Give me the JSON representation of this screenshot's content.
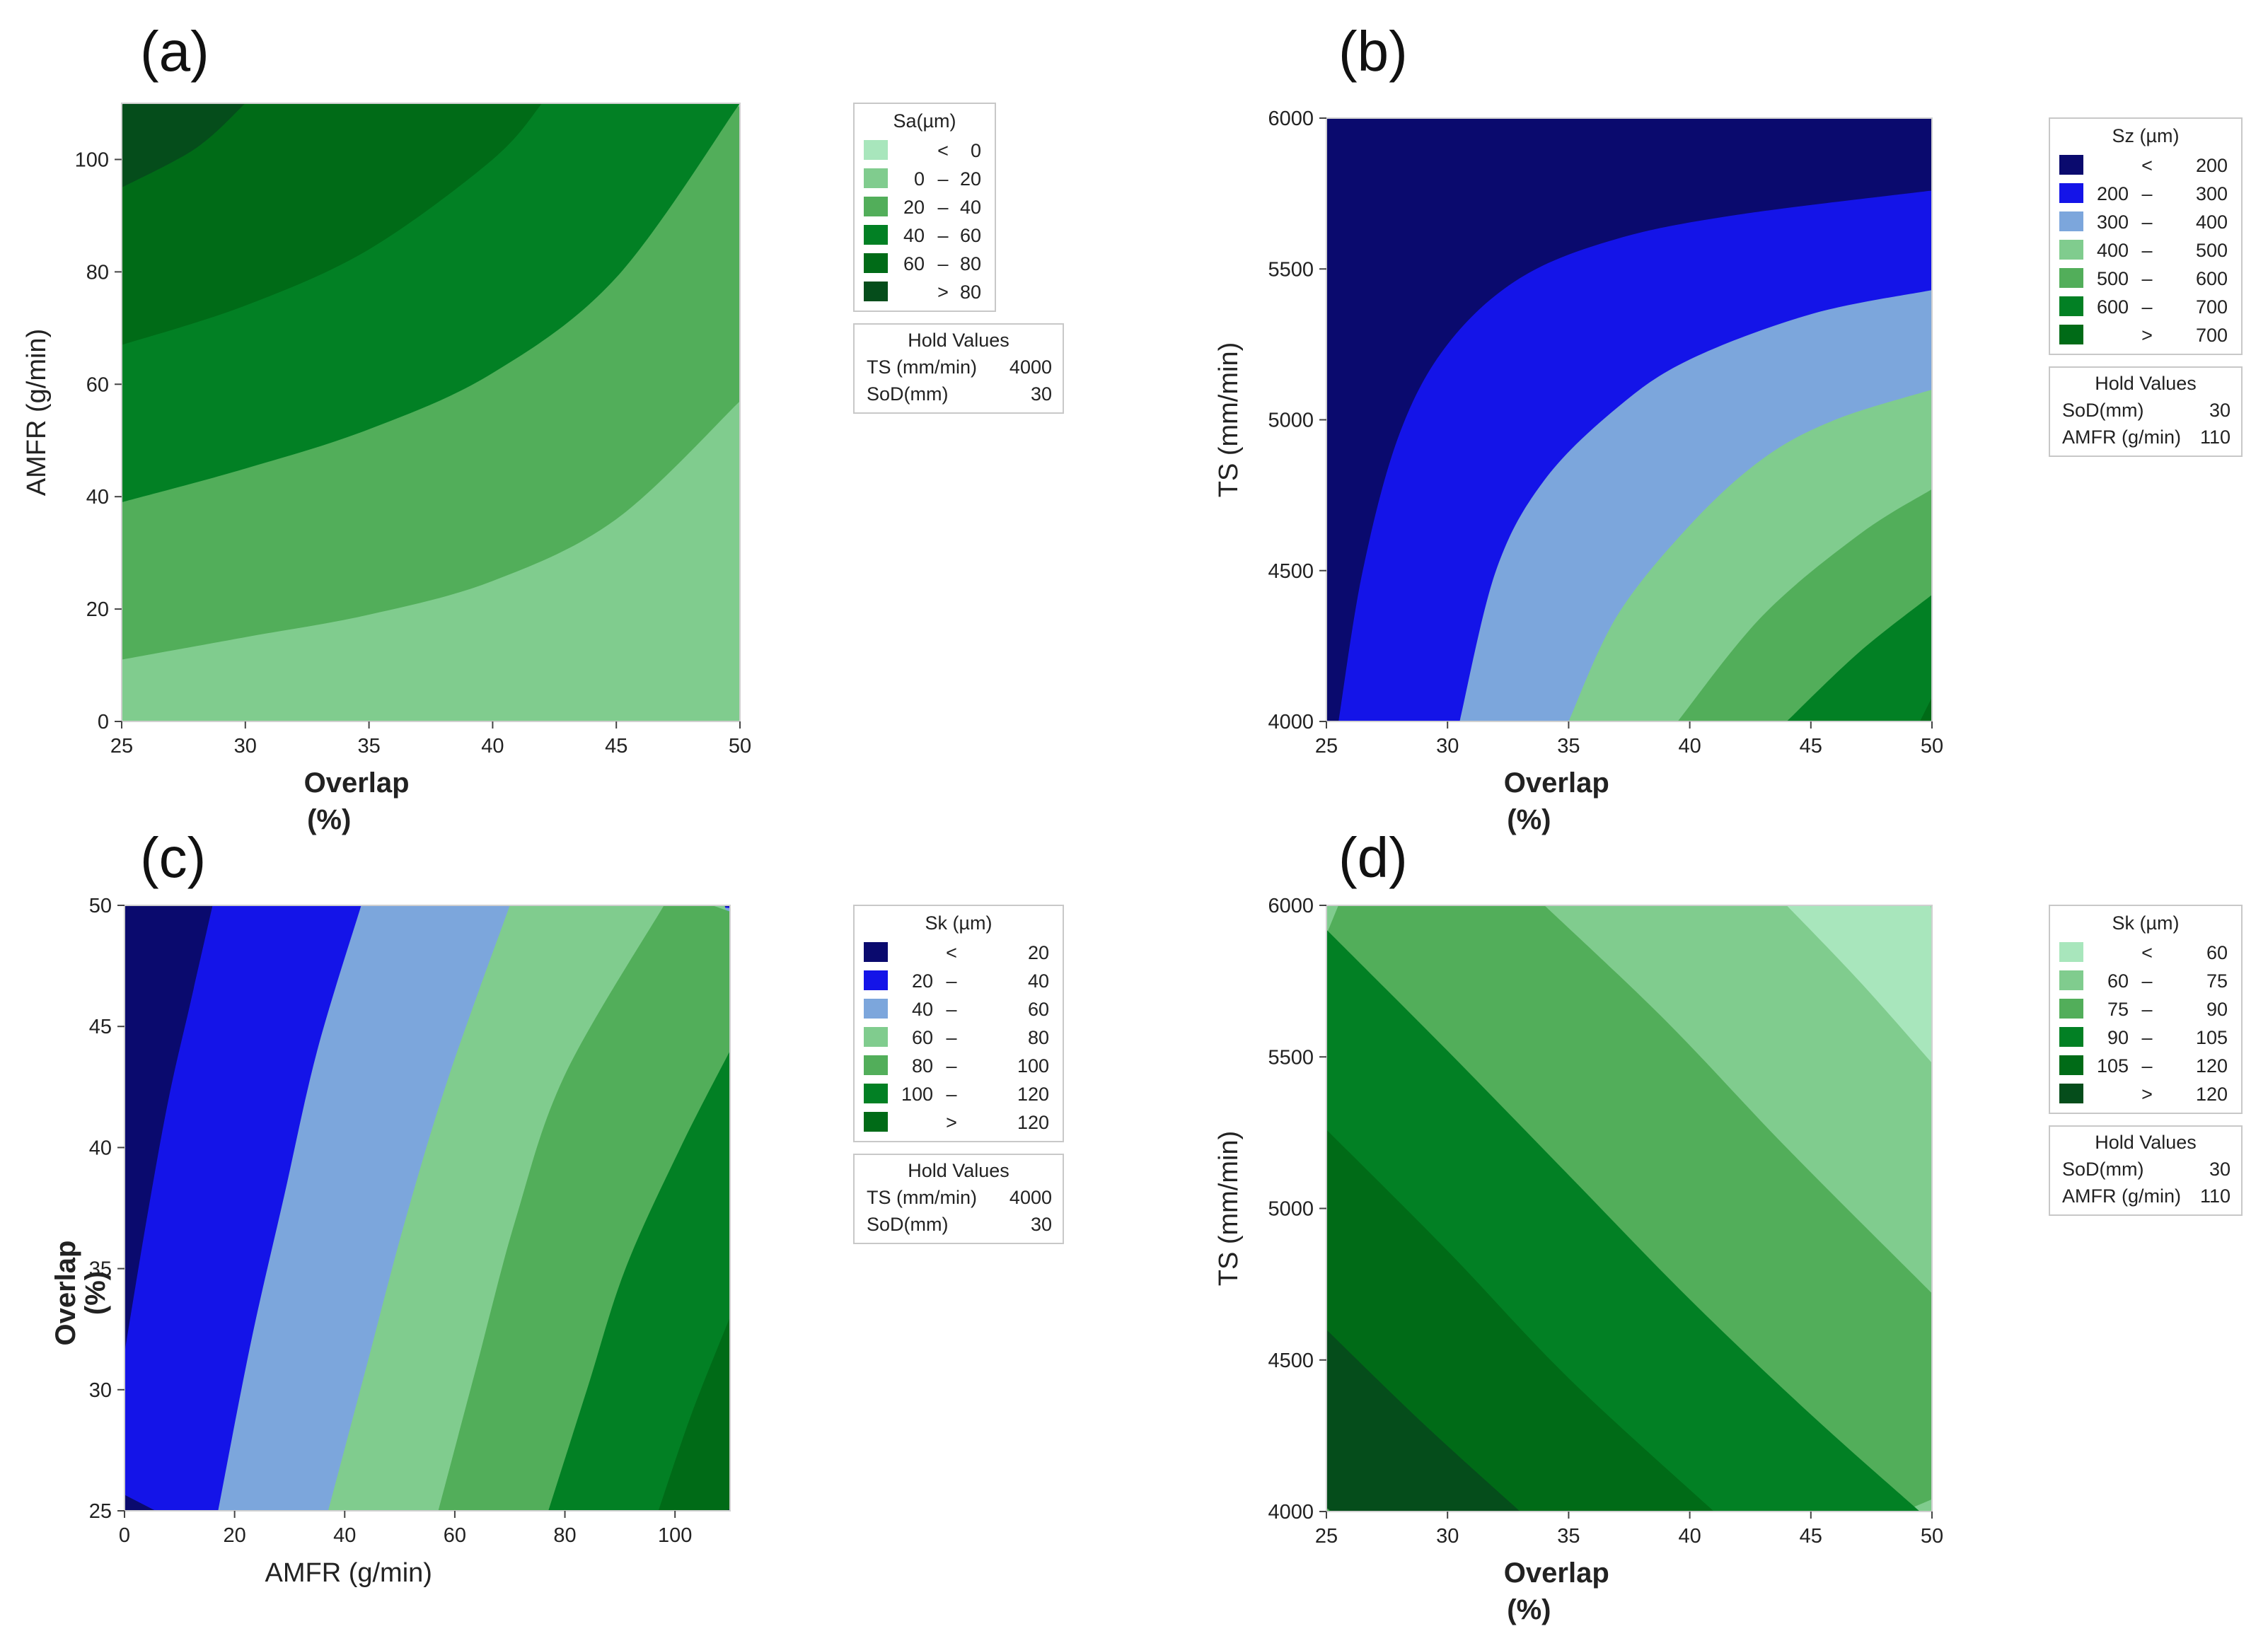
{
  "chart_data": [
    {
      "type": "contour",
      "panel_label": "(a)",
      "xlabel": "Overlap",
      "xlabel_unit": "(%)",
      "ylabel": "AMFR (g/min)",
      "x_ticks": [
        "25",
        "30",
        "35",
        "40",
        "45",
        "50"
      ],
      "y_ticks": [
        "0",
        "20",
        "40",
        "60",
        "80",
        "100"
      ],
      "xlim": [
        25,
        50
      ],
      "ylim": [
        0,
        110
      ],
      "legend": {
        "title": "Sa(µm)",
        "entries": [
          {
            "lo": "",
            "op": "<",
            "hi": "0",
            "color": "#a8e6bc"
          },
          {
            "lo": "0",
            "op": "–",
            "hi": "20",
            "color": "#80cc8e"
          },
          {
            "lo": "20",
            "op": "–",
            "hi": "40",
            "color": "#52ae5a"
          },
          {
            "lo": "40",
            "op": "–",
            "hi": "60",
            "color": "#028024"
          },
          {
            "lo": "60",
            "op": "–",
            "hi": "80",
            "color": "#006b17"
          },
          {
            "lo": "",
            "op": ">",
            "hi": "80",
            "color": "#054d1b"
          }
        ]
      },
      "hold_values": {
        "title": "Hold Values",
        "rows": [
          {
            "name": "TS (mm/min)",
            "value": "4000"
          },
          {
            "name": "SoD(mm)",
            "value": "30"
          }
        ]
      },
      "contour_boundaries": [
        {
          "level": 20,
          "points": [
            [
              25,
              11
            ],
            [
              30,
              15
            ],
            [
              35,
              19
            ],
            [
              40,
              25
            ],
            [
              45,
              36
            ],
            [
              50,
              57
            ]
          ]
        },
        {
          "level": 40,
          "points": [
            [
              25,
              39
            ],
            [
              30,
              45
            ],
            [
              35,
              52
            ],
            [
              40,
              62
            ],
            [
              45,
              79
            ],
            [
              50,
              110
            ]
          ]
        },
        {
          "level": 60,
          "points": [
            [
              25,
              67
            ],
            [
              30,
              74
            ],
            [
              35,
              84
            ],
            [
              40,
              100
            ],
            [
              42,
              110
            ]
          ]
        },
        {
          "level": 80,
          "points": [
            [
              25,
              95
            ],
            [
              28,
              102
            ],
            [
              30,
              110
            ]
          ]
        }
      ]
    },
    {
      "type": "contour",
      "panel_label": "(b)",
      "xlabel": "Overlap",
      "xlabel_unit": "(%)",
      "ylabel": "TS (mm/min)",
      "x_ticks": [
        "25",
        "30",
        "35",
        "40",
        "45",
        "50"
      ],
      "y_ticks": [
        "4000",
        "4500",
        "5000",
        "5500",
        "6000"
      ],
      "xlim": [
        25,
        50
      ],
      "ylim": [
        4000,
        6000
      ],
      "legend": {
        "title": "Sz (µm)",
        "entries": [
          {
            "lo": "",
            "op": "<",
            "hi": "200",
            "color": "#0a0a6e"
          },
          {
            "lo": "200",
            "op": "–",
            "hi": "300",
            "color": "#1414e8"
          },
          {
            "lo": "300",
            "op": "–",
            "hi": "400",
            "color": "#7ca6dc"
          },
          {
            "lo": "400",
            "op": "–",
            "hi": "500",
            "color": "#80cc8e"
          },
          {
            "lo": "500",
            "op": "–",
            "hi": "600",
            "color": "#52ae5a"
          },
          {
            "lo": "600",
            "op": "–",
            "hi": "700",
            "color": "#028024"
          },
          {
            "lo": "",
            "op": ">",
            "hi": "700",
            "color": "#006b17"
          }
        ]
      },
      "hold_values": {
        "title": "Hold Values",
        "rows": [
          {
            "name": "SoD(mm)",
            "value": "30"
          },
          {
            "name": "AMFR (g/min)",
            "value": "110"
          }
        ]
      },
      "contour_boundaries": [
        {
          "level": 200,
          "points": [
            [
              25.5,
              4000
            ],
            [
              26.5,
              4500
            ],
            [
              28,
              4950
            ],
            [
              30,
              5250
            ],
            [
              33,
              5470
            ],
            [
              37,
              5600
            ],
            [
              42,
              5680
            ],
            [
              50,
              5760
            ]
          ]
        },
        {
          "level": 300,
          "points": [
            [
              30.5,
              4000
            ],
            [
              32,
              4500
            ],
            [
              34,
              4800
            ],
            [
              37,
              5040
            ],
            [
              40,
              5200
            ],
            [
              45,
              5350
            ],
            [
              50,
              5430
            ]
          ]
        },
        {
          "level": 400,
          "points": [
            [
              35,
              4000
            ],
            [
              37,
              4350
            ],
            [
              40,
              4650
            ],
            [
              43,
              4870
            ],
            [
              46,
              5000
            ],
            [
              50,
              5100
            ]
          ]
        },
        {
          "level": 500,
          "points": [
            [
              39.5,
              4000
            ],
            [
              43,
              4350
            ],
            [
              47,
              4620
            ],
            [
              50,
              4770
            ]
          ]
        },
        {
          "level": 600,
          "points": [
            [
              44,
              4000
            ],
            [
              47,
              4230
            ],
            [
              50,
              4420
            ]
          ]
        },
        {
          "level": 700,
          "points": [
            [
              49.5,
              4000
            ],
            [
              50,
              4080
            ]
          ]
        }
      ]
    },
    {
      "type": "contour",
      "panel_label": "(c)",
      "xlabel": "AMFR (g/min)",
      "ylabel": "Overlap",
      "ylabel_unit": "(%)",
      "x_ticks": [
        "0",
        "20",
        "40",
        "60",
        "80",
        "100"
      ],
      "y_ticks": [
        "25",
        "30",
        "35",
        "40",
        "45",
        "50"
      ],
      "xlim": [
        0,
        110
      ],
      "ylim": [
        25,
        50
      ],
      "legend": {
        "title": "Sk (µm)",
        "entries": [
          {
            "lo": "",
            "op": "<",
            "hi": "20",
            "color": "#0a0a6e"
          },
          {
            "lo": "20",
            "op": "–",
            "hi": "40",
            "color": "#1414e8"
          },
          {
            "lo": "40",
            "op": "–",
            "hi": "60",
            "color": "#7ca6dc"
          },
          {
            "lo": "60",
            "op": "–",
            "hi": "80",
            "color": "#80cc8e"
          },
          {
            "lo": "80",
            "op": "–",
            "hi": "100",
            "color": "#52ae5a"
          },
          {
            "lo": "100",
            "op": "–",
            "hi": "120",
            "color": "#028024"
          },
          {
            "lo": "",
            "op": ">",
            "hi": "120",
            "color": "#006b17"
          }
        ]
      },
      "hold_values": {
        "title": "Hold Values",
        "rows": [
          {
            "name": "TS (mm/min)",
            "value": "4000"
          },
          {
            "name": "SoD(mm)",
            "value": "30"
          }
        ]
      },
      "contour_boundaries": [
        {
          "level": 20,
          "points": [
            [
              0,
              31.5
            ],
            [
              4,
              37
            ],
            [
              8,
              42
            ],
            [
              12,
              46
            ],
            [
              16,
              50
            ]
          ]
        },
        {
          "level": 40,
          "points": [
            [
              17,
              25
            ],
            [
              23,
              32
            ],
            [
              29,
              38
            ],
            [
              35,
              44
            ],
            [
              43,
              50
            ]
          ]
        },
        {
          "level": 60,
          "points": [
            [
              37,
              25
            ],
            [
              44,
              31
            ],
            [
              51,
              37
            ],
            [
              59,
              43
            ],
            [
              70,
              50
            ]
          ]
        },
        {
          "level": 80,
          "points": [
            [
              57,
              25
            ],
            [
              64,
              31
            ],
            [
              71,
              37
            ],
            [
              80,
              43
            ],
            [
              98,
              50
            ]
          ]
        },
        {
          "level": 100,
          "points": [
            [
              77,
              25
            ],
            [
              84,
              30
            ],
            [
              91,
              35
            ],
            [
              101,
              40
            ],
            [
              110,
              44
            ]
          ]
        },
        {
          "level": 120,
          "points": [
            [
              97,
              25
            ],
            [
              103,
              29
            ],
            [
              110,
              33
            ]
          ]
        }
      ]
    },
    {
      "type": "contour",
      "panel_label": "(d)",
      "xlabel": "Overlap",
      "xlabel_unit": "(%)",
      "ylabel": "TS (mm/min)",
      "x_ticks": [
        "25",
        "30",
        "35",
        "40",
        "45",
        "50"
      ],
      "y_ticks": [
        "4000",
        "4500",
        "5000",
        "5500",
        "6000"
      ],
      "xlim": [
        25,
        50
      ],
      "ylim": [
        4000,
        6000
      ],
      "legend": {
        "title": "Sk (µm)",
        "entries": [
          {
            "lo": "",
            "op": "<",
            "hi": "60",
            "color": "#a8e6bc"
          },
          {
            "lo": "60",
            "op": "–",
            "hi": "75",
            "color": "#80cc8e"
          },
          {
            "lo": "75",
            "op": "–",
            "hi": "90",
            "color": "#52ae5a"
          },
          {
            "lo": "90",
            "op": "–",
            "hi": "105",
            "color": "#028024"
          },
          {
            "lo": "105",
            "op": "–",
            "hi": "120",
            "color": "#006b17"
          },
          {
            "lo": "",
            "op": ">",
            "hi": "120",
            "color": "#054d1b"
          }
        ]
      },
      "hold_values": {
        "title": "Hold Values",
        "rows": [
          {
            "name": "SoD(mm)",
            "value": "30"
          },
          {
            "name": "AMFR (g/min)",
            "value": "110"
          }
        ]
      },
      "contour_boundaries": [
        {
          "level": 60,
          "points": [
            [
              44,
              6000
            ],
            [
              47,
              5750
            ],
            [
              50,
              5480
            ]
          ]
        },
        {
          "level": 75,
          "points": [
            [
              34,
              6000
            ],
            [
              39,
              5620
            ],
            [
              44,
              5200
            ],
            [
              50,
              4720
            ]
          ]
        },
        {
          "level": 90,
          "points": [
            [
              25,
              5920
            ],
            [
              30,
              5520
            ],
            [
              35,
              5110
            ],
            [
              40,
              4700
            ],
            [
              45,
              4320
            ],
            [
              49.5,
              4000
            ]
          ]
        },
        {
          "level": 105,
          "points": [
            [
              25,
              5260
            ],
            [
              30,
              4860
            ],
            [
              35,
              4440
            ],
            [
              41,
              4000
            ]
          ]
        },
        {
          "level": 120,
          "points": [
            [
              25,
              4600
            ],
            [
              29,
              4290
            ],
            [
              33,
              4000
            ]
          ]
        }
      ]
    }
  ]
}
